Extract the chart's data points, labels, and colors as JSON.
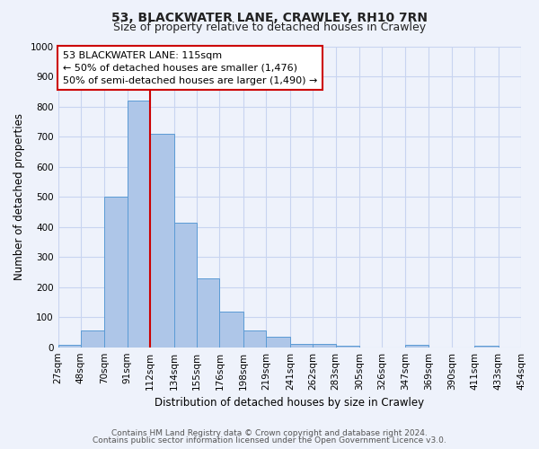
{
  "title": "53, BLACKWATER LANE, CRAWLEY, RH10 7RN",
  "subtitle": "Size of property relative to detached houses in Crawley",
  "xlabel": "Distribution of detached houses by size in Crawley",
  "ylabel": "Number of detached properties",
  "bin_edges": [
    27,
    48,
    70,
    91,
    112,
    134,
    155,
    176,
    198,
    219,
    241,
    262,
    283,
    305,
    326,
    347,
    369,
    390,
    411,
    433,
    454
  ],
  "bin_labels": [
    "27sqm",
    "48sqm",
    "70sqm",
    "91sqm",
    "112sqm",
    "134sqm",
    "155sqm",
    "176sqm",
    "198sqm",
    "219sqm",
    "241sqm",
    "262sqm",
    "283sqm",
    "305sqm",
    "326sqm",
    "347sqm",
    "369sqm",
    "390sqm",
    "411sqm",
    "433sqm",
    "454sqm"
  ],
  "counts": [
    8,
    57,
    500,
    820,
    710,
    415,
    230,
    117,
    57,
    35,
    12,
    12,
    5,
    0,
    0,
    7,
    0,
    0,
    5,
    0
  ],
  "bar_color": "#aec6e8",
  "bar_edge_color": "#5b9bd5",
  "vline_x": 112,
  "vline_color": "#cc0000",
  "annotation_title": "53 BLACKWATER LANE: 115sqm",
  "annotation_line1": "← 50% of detached houses are smaller (1,476)",
  "annotation_line2": "50% of semi-detached houses are larger (1,490) →",
  "annotation_box_facecolor": "#ffffff",
  "annotation_border_color": "#cc0000",
  "ylim": [
    0,
    1000
  ],
  "yticks": [
    0,
    100,
    200,
    300,
    400,
    500,
    600,
    700,
    800,
    900,
    1000
  ],
  "footer1": "Contains HM Land Registry data © Crown copyright and database right 2024.",
  "footer2": "Contains public sector information licensed under the Open Government Licence v3.0.",
  "bg_color": "#eef2fb",
  "grid_color": "#c8d4f0",
  "title_fontsize": 10,
  "subtitle_fontsize": 9,
  "axis_label_fontsize": 8.5,
  "tick_fontsize": 7.5,
  "annotation_fontsize": 8,
  "footer_fontsize": 6.5
}
